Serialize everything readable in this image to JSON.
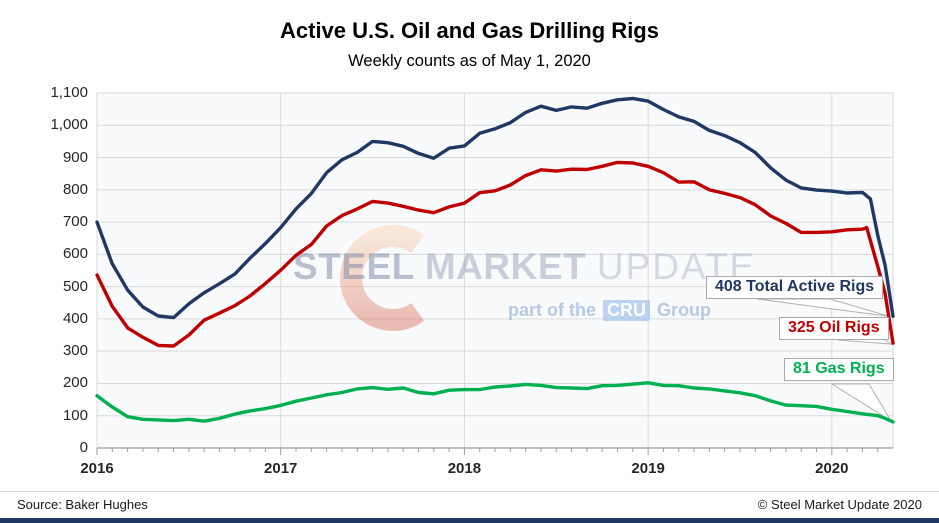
{
  "header": {
    "title": "Active U.S. Oil and Gas Drilling Rigs",
    "subtitle": "Weekly counts as of May 1, 2020"
  },
  "watermark": {
    "word1": "STEEL",
    "word2": "MARKET",
    "word3": "UPDATE",
    "tagline_prefix": "part of the",
    "cru": "CRU",
    "tagline_suffix": "Group"
  },
  "annotations": [
    {
      "label": "408 Total Active Rigs",
      "value": 408,
      "color": "#1f3864"
    },
    {
      "label": "325 Oil Rigs",
      "value": 325,
      "color": "#c00000"
    },
    {
      "label": "81 Gas Rigs",
      "value": 81,
      "color": "#00b050"
    }
  ],
  "footer": {
    "source": "Source: Baker Hughes",
    "copyright": "© Steel Market Update 2020"
  },
  "colors": {
    "total": "#1f3864",
    "oil": "#c00000",
    "gas": "#00b050",
    "gridline": "#d9d9d9",
    "axis": "#9e9e9e",
    "plot_bg": "#f9fafc",
    "accent_bar": "#1f3864"
  },
  "chart_data": {
    "type": "line",
    "title": "Active U.S. Oil and Gas Drilling Rigs",
    "subtitle": "Weekly counts as of May 1, 2020",
    "xlabel": "",
    "ylabel": "",
    "x_domain": [
      2016,
      2020.333
    ],
    "y_domain": [
      0,
      1100
    ],
    "y_tick_step": 100,
    "x_ticks": [
      2016,
      2017,
      2018,
      2019,
      2020
    ],
    "grid": true,
    "legend": "end-of-line callout labels",
    "series": [
      {
        "name": "Total Active Rigs",
        "color": "#1f3864",
        "end_label": "408 Total Active Rigs",
        "end_value": 408,
        "points": [
          [
            2016.0,
            700
          ],
          [
            2016.083,
            571
          ],
          [
            2016.167,
            489
          ],
          [
            2016.25,
            437
          ],
          [
            2016.333,
            409
          ],
          [
            2016.417,
            404
          ],
          [
            2016.5,
            447
          ],
          [
            2016.583,
            481
          ],
          [
            2016.667,
            509
          ],
          [
            2016.75,
            539
          ],
          [
            2016.833,
            588
          ],
          [
            2016.917,
            634
          ],
          [
            2017.0,
            683
          ],
          [
            2017.083,
            741
          ],
          [
            2017.167,
            789
          ],
          [
            2017.25,
            853
          ],
          [
            2017.333,
            893
          ],
          [
            2017.417,
            916
          ],
          [
            2017.5,
            950
          ],
          [
            2017.583,
            946
          ],
          [
            2017.667,
            935
          ],
          [
            2017.75,
            913
          ],
          [
            2017.833,
            898
          ],
          [
            2017.917,
            929
          ],
          [
            2018.0,
            936
          ],
          [
            2018.083,
            975
          ],
          [
            2018.167,
            989
          ],
          [
            2018.25,
            1008
          ],
          [
            2018.333,
            1040
          ],
          [
            2018.417,
            1059
          ],
          [
            2018.5,
            1046
          ],
          [
            2018.583,
            1057
          ],
          [
            2018.667,
            1053
          ],
          [
            2018.75,
            1068
          ],
          [
            2018.833,
            1079
          ],
          [
            2018.917,
            1083
          ],
          [
            2019.0,
            1075
          ],
          [
            2019.083,
            1049
          ],
          [
            2019.167,
            1026
          ],
          [
            2019.25,
            1012
          ],
          [
            2019.333,
            984
          ],
          [
            2019.417,
            968
          ],
          [
            2019.5,
            946
          ],
          [
            2019.583,
            916
          ],
          [
            2019.667,
            868
          ],
          [
            2019.75,
            830
          ],
          [
            2019.833,
            806
          ],
          [
            2019.917,
            799
          ],
          [
            2020.0,
            796
          ],
          [
            2020.083,
            790
          ],
          [
            2020.167,
            792
          ],
          [
            2020.21,
            772
          ],
          [
            2020.25,
            658
          ],
          [
            2020.29,
            566
          ],
          [
            2020.333,
            408
          ]
        ]
      },
      {
        "name": "Oil Rigs",
        "color": "#c00000",
        "end_label": "325 Oil Rigs",
        "end_value": 325,
        "points": [
          [
            2016.0,
            536
          ],
          [
            2016.083,
            439
          ],
          [
            2016.167,
            372
          ],
          [
            2016.25,
            343
          ],
          [
            2016.333,
            318
          ],
          [
            2016.417,
            316
          ],
          [
            2016.5,
            350
          ],
          [
            2016.583,
            396
          ],
          [
            2016.667,
            418
          ],
          [
            2016.75,
            441
          ],
          [
            2016.833,
            471
          ],
          [
            2016.917,
            510
          ],
          [
            2017.0,
            551
          ],
          [
            2017.083,
            597
          ],
          [
            2017.167,
            631
          ],
          [
            2017.25,
            688
          ],
          [
            2017.333,
            720
          ],
          [
            2017.417,
            741
          ],
          [
            2017.5,
            764
          ],
          [
            2017.583,
            759
          ],
          [
            2017.667,
            749
          ],
          [
            2017.75,
            737
          ],
          [
            2017.833,
            729
          ],
          [
            2017.917,
            747
          ],
          [
            2018.0,
            759
          ],
          [
            2018.083,
            791
          ],
          [
            2018.167,
            797
          ],
          [
            2018.25,
            815
          ],
          [
            2018.333,
            844
          ],
          [
            2018.417,
            862
          ],
          [
            2018.5,
            858
          ],
          [
            2018.583,
            864
          ],
          [
            2018.667,
            863
          ],
          [
            2018.75,
            873
          ],
          [
            2018.833,
            885
          ],
          [
            2018.917,
            883
          ],
          [
            2019.0,
            873
          ],
          [
            2019.083,
            853
          ],
          [
            2019.167,
            824
          ],
          [
            2019.25,
            825
          ],
          [
            2019.333,
            800
          ],
          [
            2019.417,
            789
          ],
          [
            2019.5,
            776
          ],
          [
            2019.583,
            754
          ],
          [
            2019.667,
            719
          ],
          [
            2019.75,
            696
          ],
          [
            2019.833,
            668
          ],
          [
            2019.917,
            668
          ],
          [
            2020.0,
            670
          ],
          [
            2020.083,
            676
          ],
          [
            2020.167,
            678
          ],
          [
            2020.19,
            683
          ],
          [
            2020.25,
            562
          ],
          [
            2020.29,
            478
          ],
          [
            2020.333,
            325
          ]
        ]
      },
      {
        "name": "Gas Rigs",
        "color": "#00b050",
        "end_label": "81 Gas Rigs",
        "end_value": 81,
        "points": [
          [
            2016.0,
            162
          ],
          [
            2016.083,
            127
          ],
          [
            2016.167,
            97
          ],
          [
            2016.25,
            89
          ],
          [
            2016.333,
            87
          ],
          [
            2016.417,
            85
          ],
          [
            2016.5,
            89
          ],
          [
            2016.583,
            83
          ],
          [
            2016.667,
            92
          ],
          [
            2016.75,
            105
          ],
          [
            2016.833,
            115
          ],
          [
            2016.917,
            122
          ],
          [
            2017.0,
            132
          ],
          [
            2017.083,
            145
          ],
          [
            2017.167,
            155
          ],
          [
            2017.25,
            165
          ],
          [
            2017.333,
            172
          ],
          [
            2017.417,
            183
          ],
          [
            2017.5,
            187
          ],
          [
            2017.583,
            182
          ],
          [
            2017.667,
            186
          ],
          [
            2017.75,
            172
          ],
          [
            2017.833,
            168
          ],
          [
            2017.917,
            179
          ],
          [
            2018.0,
            181
          ],
          [
            2018.083,
            181
          ],
          [
            2018.167,
            189
          ],
          [
            2018.25,
            192
          ],
          [
            2018.333,
            197
          ],
          [
            2018.417,
            194
          ],
          [
            2018.5,
            187
          ],
          [
            2018.583,
            186
          ],
          [
            2018.667,
            184
          ],
          [
            2018.75,
            193
          ],
          [
            2018.833,
            194
          ],
          [
            2018.917,
            198
          ],
          [
            2019.0,
            202
          ],
          [
            2019.083,
            194
          ],
          [
            2019.167,
            193
          ],
          [
            2019.25,
            186
          ],
          [
            2019.333,
            183
          ],
          [
            2019.417,
            177
          ],
          [
            2019.5,
            171
          ],
          [
            2019.583,
            162
          ],
          [
            2019.667,
            146
          ],
          [
            2019.75,
            133
          ],
          [
            2019.833,
            131
          ],
          [
            2019.917,
            129
          ],
          [
            2020.0,
            120
          ],
          [
            2020.083,
            113
          ],
          [
            2020.167,
            106
          ],
          [
            2020.25,
            100
          ],
          [
            2020.29,
            92
          ],
          [
            2020.333,
            81
          ]
        ]
      }
    ]
  }
}
